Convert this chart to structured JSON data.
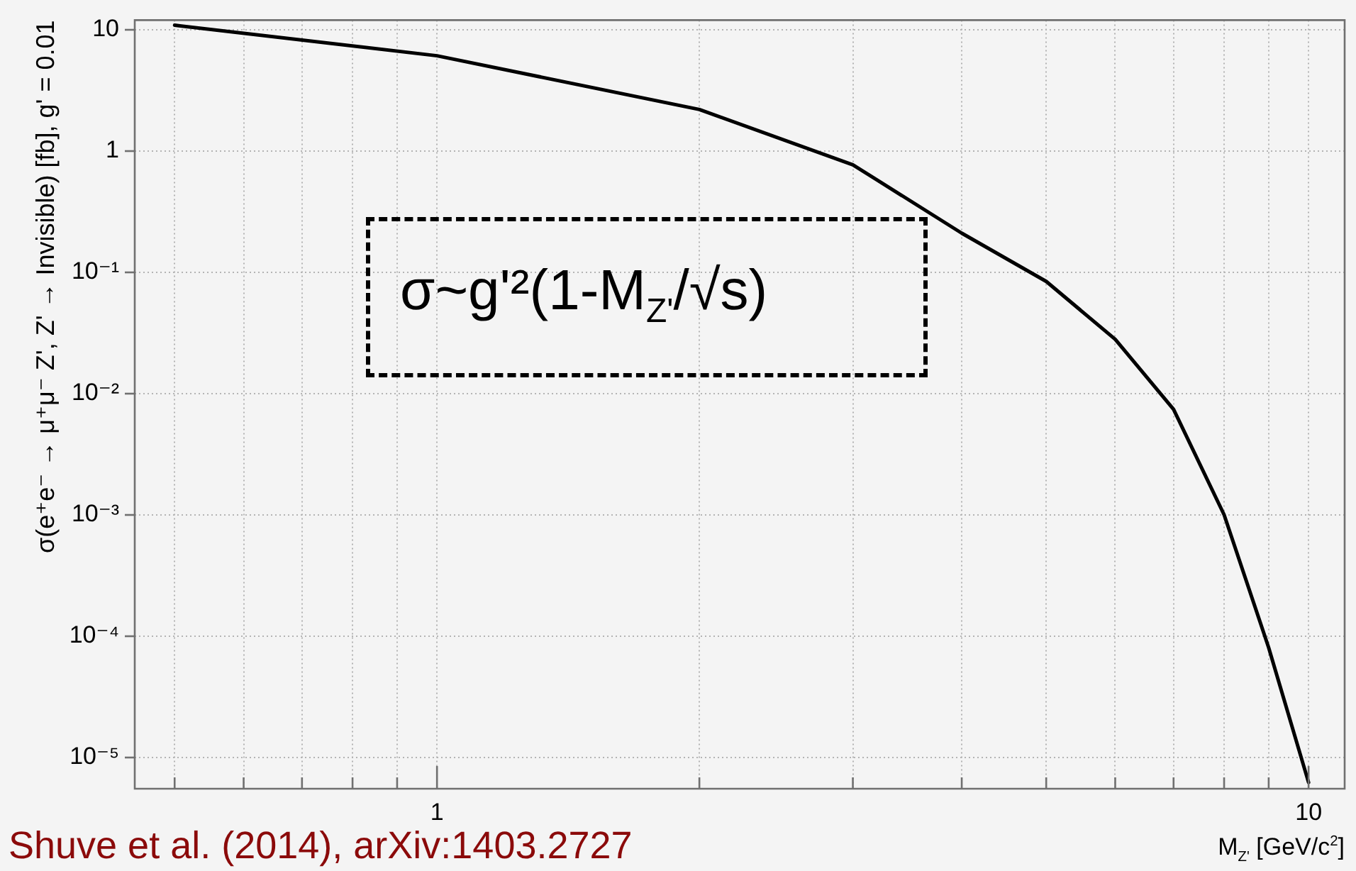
{
  "chart_data": {
    "type": "line",
    "ylabel": "σ(e⁺e⁻ → μ⁺μ⁻ Z', Z' → Invisible) [fb], g' = 0.01",
    "xlabel": "M$_{Z'}$ [GeV/c$^{2}$]",
    "annotations": [
      "σ~g'²(1-M$_{Z'}$/√s)",
      "Shuve et al. (2014), arXiv:1403.2727"
    ],
    "series": [
      {
        "color": "#000000",
        "x": [
          0.5,
          1,
          2,
          3,
          4,
          5,
          6,
          7,
          8,
          9,
          10
        ],
        "values": [
          10.9,
          6.1,
          2.2,
          0.77,
          0.21,
          0.084,
          0.028,
          0.0074,
          0.001,
          8e-05,
          6.2e-06
        ]
      }
    ],
    "log": "xy",
    "grid": true,
    "xlim": [
      0.45,
      11
    ],
    "xticks": [
      {
        "value": 0.5,
        "label": null
      },
      {
        "value": 0.6,
        "label": null
      },
      {
        "value": 0.7,
        "label": null
      },
      {
        "value": 0.8,
        "label": null
      },
      {
        "value": 0.9,
        "label": null
      },
      1,
      {
        "value": 2,
        "label": null
      },
      {
        "value": 3,
        "label": null
      },
      {
        "value": 4,
        "label": null
      },
      {
        "value": 5,
        "label": null
      },
      {
        "value": 6,
        "label": null
      },
      {
        "value": 7,
        "label": null
      },
      {
        "value": 8,
        "label": null
      },
      {
        "value": 9,
        "label": null
      },
      10
    ],
    "ylim": [
      5.5e-06,
      12
    ],
    "yticks": [
      {
        "value": 1e-05,
        "label": "10⁻⁵"
      },
      {
        "value": 0.0001,
        "label": "10⁻⁴"
      },
      {
        "value": 0.001,
        "label": "10⁻³"
      },
      {
        "value": 0.01,
        "label": "10⁻²"
      },
      {
        "value": 0.1,
        "label": "10⁻¹"
      },
      1,
      10
    ]
  }
}
